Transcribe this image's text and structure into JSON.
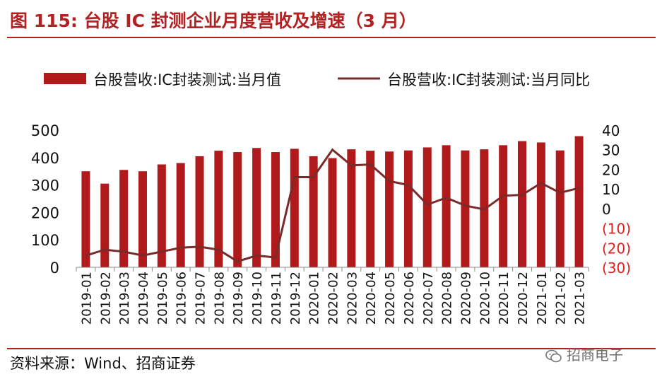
{
  "title": "图 115:  台股 IC 封测企业月度营收及增速（3 月）",
  "source": "资料来源：Wind、招商证券",
  "watermark": "招商电子",
  "colors": {
    "bar": "#b01a1a",
    "line": "#7b2a2a",
    "negative_tick": "#e02020",
    "title": "#b22222"
  },
  "chart_data": {
    "type": "bar",
    "categories": [
      "2019-01",
      "2019-02",
      "2019-03",
      "2019-04",
      "2019-05",
      "2019-06",
      "2019-07",
      "2019-08",
      "2019-09",
      "2019-10",
      "2019-11",
      "2019-12",
      "2020-01",
      "2020-02",
      "2020-03",
      "2020-04",
      "2020-05",
      "2020-06",
      "2020-07",
      "2020-08",
      "2020-09",
      "2020-10",
      "2020-11",
      "2020-12",
      "2021-01",
      "2021-02",
      "2021-03"
    ],
    "series": [
      {
        "name": "台股营收:IC封装测试:当月值",
        "type": "bar",
        "axis": "left",
        "values": [
          350,
          305,
          355,
          350,
          375,
          380,
          405,
          425,
          420,
          435,
          420,
          432,
          405,
          398,
          430,
          425,
          422,
          426,
          437,
          445,
          426,
          430,
          445,
          460,
          455,
          426,
          478
        ]
      },
      {
        "name": "台股营收:IC封装测试:当月同比",
        "type": "line",
        "axis": "right",
        "values": [
          -24,
          -21,
          -22,
          -24,
          -22,
          -20,
          -19.5,
          -21,
          -27,
          -24,
          -25,
          16,
          16,
          30,
          22,
          22.5,
          14,
          12,
          2,
          5.5,
          1.5,
          -0.5,
          6.5,
          7,
          13,
          8,
          10.5
        ]
      }
    ],
    "left_axis": {
      "ylim": [
        0,
        500
      ],
      "ticks": [
        "0",
        "100",
        "200",
        "300",
        "400",
        "500"
      ]
    },
    "right_axis": {
      "ylim": [
        -30,
        40
      ],
      "ticks": [
        "(30)",
        "(20)",
        "(10)",
        "0",
        "10",
        "20",
        "30",
        "40"
      ]
    },
    "legend_position": "top",
    "grid": false
  }
}
